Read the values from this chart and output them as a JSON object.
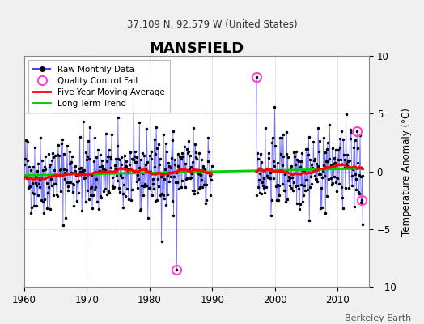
{
  "title": "MANSFIELD",
  "subtitle": "37.109 N, 92.579 W (United States)",
  "ylabel": "Temperature Anomaly (°C)",
  "credit": "Berkeley Earth",
  "year_start": 1960,
  "year_end": 2014,
  "ylim": [
    -10,
    10
  ],
  "yticks": [
    -10,
    -5,
    0,
    5,
    10
  ],
  "xticks": [
    1960,
    1970,
    1980,
    1990,
    2000,
    2010
  ],
  "background_color": "#f0f0f0",
  "plot_background": "#ffffff",
  "raw_line_color": "#4444ff",
  "raw_dot_color": "#000000",
  "moving_avg_color": "#ff0000",
  "trend_color": "#00cc00",
  "qc_fail_color": "#ff44cc",
  "grid_color": "#cccccc",
  "seed": 42,
  "n_months": 647,
  "gap_year_start": 1990,
  "gap_year_end": 1997,
  "qc_year_1": 1984.25,
  "qc_val_1": -8.5,
  "qc_year_2": 1997.0,
  "qc_val_2": 8.2,
  "qc_year_3": 2013.0,
  "qc_val_3": 3.5,
  "qc_year_4": 2013.75,
  "qc_val_4": -2.5
}
